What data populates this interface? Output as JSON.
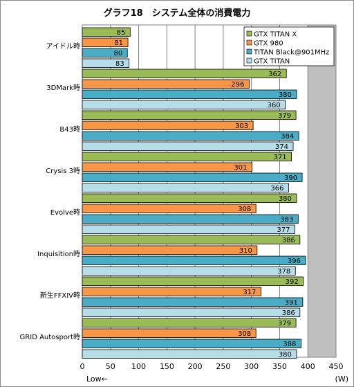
{
  "chart_data": {
    "type": "bar",
    "orientation": "horizontal",
    "title": "グラフ18　システム全体の消費電力",
    "categories": [
      "アイドル時",
      "3DMark時",
      "B43時",
      "Crysis 3時",
      "Evolve時",
      "Inquisition時",
      "新生FFXIV時",
      "GRID Autosport時"
    ],
    "series": [
      {
        "name": "GTX TITAN X",
        "color": "#9bbb59",
        "values": [
          85,
          362,
          379,
          371,
          380,
          386,
          392,
          379
        ]
      },
      {
        "name": "GTX 980",
        "color": "#f79646",
        "values": [
          81,
          296,
          303,
          301,
          308,
          310,
          317,
          308
        ]
      },
      {
        "name": "TITAN Black@901MHz",
        "color": "#4bacc6",
        "values": [
          80,
          380,
          384,
          390,
          383,
          396,
          391,
          388
        ]
      },
      {
        "name": "GTX TITAN",
        "color": "#b7dee8",
        "values": [
          83,
          360,
          374,
          366,
          377,
          378,
          386,
          380
        ]
      }
    ],
    "xlim": [
      0,
      450
    ],
    "xticks": [
      "0",
      "50",
      "100",
      "150",
      "200",
      "250",
      "300",
      "350",
      "400",
      "450"
    ],
    "xunit": "(W)",
    "direction_label": "Low←",
    "grid": true,
    "legend_position": "top-right",
    "shade_from": 400,
    "colors": {
      "grid": "#7f7f7f",
      "shade": "#c0c0c0",
      "bar_border": "#000000"
    }
  }
}
